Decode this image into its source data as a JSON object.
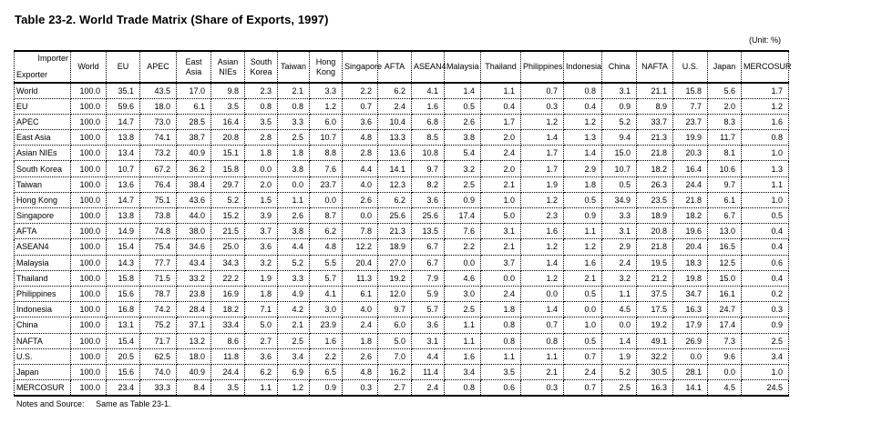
{
  "title": "Table 23-2.   World Trade Matrix (Share of Exports, 1997)",
  "unit": "(Unit: %)",
  "corner": {
    "importer": "Importer",
    "exporter": "Exporter"
  },
  "columns": [
    "World",
    "EU",
    "APEC",
    "East Asia",
    "Asian NIEs",
    "South Korea",
    "Taiwan",
    "Hong Kong",
    "Singapore",
    "AFTA",
    "ASEAN4",
    "Malaysia",
    "Thailand",
    "Philippines",
    "Indonesia",
    "China",
    "NAFTA",
    "U.S.",
    "Japan",
    "MERCOSUR"
  ],
  "rows": [
    {
      "exporter": "World",
      "values": [
        "100.0",
        "35.1",
        "43.5",
        "17.0",
        "9.8",
        "2.3",
        "2.1",
        "3.3",
        "2.2",
        "6.2",
        "4.1",
        "1.4",
        "1.1",
        "0.7",
        "0.8",
        "3.1",
        "21.1",
        "15.8",
        "5.6",
        "1.7"
      ]
    },
    {
      "exporter": "EU",
      "values": [
        "100.0",
        "59.6",
        "18.0",
        "6.1",
        "3.5",
        "0.8",
        "0.8",
        "1.2",
        "0.7",
        "2.4",
        "1.6",
        "0.5",
        "0.4",
        "0.3",
        "0.4",
        "0.9",
        "8.9",
        "7.7",
        "2.0",
        "1.2"
      ]
    },
    {
      "exporter": "APEC",
      "values": [
        "100.0",
        "14.7",
        "73.0",
        "28.5",
        "16.4",
        "3.5",
        "3.3",
        "6.0",
        "3.6",
        "10.4",
        "6.8",
        "2.6",
        "1.7",
        "1.2",
        "1.2",
        "5.2",
        "33.7",
        "23.7",
        "8.3",
        "1.6"
      ]
    },
    {
      "exporter": "East Asia",
      "values": [
        "100.0",
        "13.8",
        "74.1",
        "38.7",
        "20.8",
        "2.8",
        "2.5",
        "10.7",
        "4.8",
        "13.3",
        "8.5",
        "3.8",
        "2.0",
        "1.4",
        "1.3",
        "9.4",
        "21.3",
        "19.9",
        "11.7",
        "0.8"
      ]
    },
    {
      "exporter": "Asian NIEs",
      "values": [
        "100.0",
        "13.4",
        "73.2",
        "40.9",
        "15.1",
        "1.8",
        "1.8",
        "8.8",
        "2.8",
        "13.6",
        "10.8",
        "5.4",
        "2.4",
        "1.7",
        "1.4",
        "15.0",
        "21.8",
        "20.3",
        "8.1",
        "1.0"
      ]
    },
    {
      "exporter": "South Korea",
      "values": [
        "100.0",
        "10.7",
        "67.2",
        "36.2",
        "15.8",
        "0.0",
        "3.8",
        "7.6",
        "4.4",
        "14.1",
        "9.7",
        "3.2",
        "2.0",
        "1.7",
        "2.9",
        "10.7",
        "18.2",
        "16.4",
        "10.6",
        "1.3"
      ]
    },
    {
      "exporter": "Taiwan",
      "values": [
        "100.0",
        "13.6",
        "76.4",
        "38.4",
        "29.7",
        "2.0",
        "0.0",
        "23.7",
        "4.0",
        "12.3",
        "8.2",
        "2.5",
        "2.1",
        "1.9",
        "1.8",
        "0.5",
        "26.3",
        "24.4",
        "9.7",
        "1.1"
      ]
    },
    {
      "exporter": "Hong Kong",
      "values": [
        "100.0",
        "14.7",
        "75.1",
        "43.6",
        "5.2",
        "1.5",
        "1.1",
        "0.0",
        "2.6",
        "6.2",
        "3.6",
        "0.9",
        "1.0",
        "1.2",
        "0.5",
        "34.9",
        "23.5",
        "21.8",
        "6.1",
        "1.0"
      ]
    },
    {
      "exporter": "Singapore",
      "values": [
        "100.0",
        "13.8",
        "73.8",
        "44.0",
        "15.2",
        "3.9",
        "2.6",
        "8.7",
        "0.0",
        "25.6",
        "25.6",
        "17.4",
        "5.0",
        "2.3",
        "0.9",
        "3.3",
        "18.9",
        "18.2",
        "6.7",
        "0.5"
      ]
    },
    {
      "exporter": "AFTA",
      "values": [
        "100.0",
        "14.9",
        "74.8",
        "38.0",
        "21.5",
        "3.7",
        "3.8",
        "6.2",
        "7.8",
        "21.3",
        "13.5",
        "7.6",
        "3.1",
        "1.6",
        "1.1",
        "3.1",
        "20.8",
        "19.6",
        "13.0",
        "0.4"
      ]
    },
    {
      "exporter": "ASEAN4",
      "values": [
        "100.0",
        "15.4",
        "75.4",
        "34.6",
        "25.0",
        "3.6",
        "4.4",
        "4.8",
        "12.2",
        "18.9",
        "6.7",
        "2.2",
        "2.1",
        "1.2",
        "1.2",
        "2.9",
        "21.8",
        "20.4",
        "16.5",
        "0.4"
      ]
    },
    {
      "exporter": "Malaysia",
      "values": [
        "100.0",
        "14.3",
        "77.7",
        "43.4",
        "34.3",
        "3.2",
        "5.2",
        "5.5",
        "20.4",
        "27.0",
        "6.7",
        "0.0",
        "3.7",
        "1.4",
        "1.6",
        "2.4",
        "19.5",
        "18.3",
        "12.5",
        "0.6"
      ]
    },
    {
      "exporter": "Thailand",
      "values": [
        "100.0",
        "15.8",
        "71.5",
        "33.2",
        "22.2",
        "1.9",
        "3.3",
        "5.7",
        "11.3",
        "19.2",
        "7.9",
        "4.6",
        "0.0",
        "1.2",
        "2.1",
        "3.2",
        "21.2",
        "19.8",
        "15.0",
        "0.4"
      ]
    },
    {
      "exporter": "Philippines",
      "values": [
        "100.0",
        "15.6",
        "78.7",
        "23.8",
        "16.9",
        "1.8",
        "4.9",
        "4.1",
        "6.1",
        "12.0",
        "5.9",
        "3.0",
        "2.4",
        "0.0",
        "0.5",
        "1.1",
        "37.5",
        "34.7",
        "16.1",
        "0.2"
      ]
    },
    {
      "exporter": "Indonesia",
      "values": [
        "100.0",
        "16.8",
        "74.2",
        "28.4",
        "18.2",
        "7.1",
        "4.2",
        "3.0",
        "4.0",
        "9.7",
        "5.7",
        "2.5",
        "1.8",
        "1.4",
        "0.0",
        "4.5",
        "17.5",
        "16.3",
        "24.7",
        "0.3"
      ]
    },
    {
      "exporter": "China",
      "values": [
        "100.0",
        "13.1",
        "75.2",
        "37.1",
        "33.4",
        "5.0",
        "2.1",
        "23.9",
        "2.4",
        "6.0",
        "3.6",
        "1.1",
        "0.8",
        "0.7",
        "1.0",
        "0.0",
        "19.2",
        "17.9",
        "17.4",
        "0.9"
      ]
    },
    {
      "exporter": "NAFTA",
      "values": [
        "100.0",
        "15.4",
        "71.7",
        "13.2",
        "8.6",
        "2.7",
        "2.5",
        "1.6",
        "1.8",
        "5.0",
        "3.1",
        "1.1",
        "0.8",
        "0.8",
        "0.5",
        "1.4",
        "49.1",
        "26.9",
        "7.3",
        "2.5"
      ]
    },
    {
      "exporter": "U.S.",
      "values": [
        "100.0",
        "20.5",
        "62.5",
        "18.0",
        "11.8",
        "3.6",
        "3.4",
        "2.2",
        "2.6",
        "7.0",
        "4.4",
        "1.6",
        "1.1",
        "1.1",
        "0.7",
        "1.9",
        "32.2",
        "0.0",
        "9.6",
        "3.4"
      ]
    },
    {
      "exporter": "Japan",
      "values": [
        "100.0",
        "15.6",
        "74.0",
        "40.9",
        "24.4",
        "6.2",
        "6.9",
        "6.5",
        "4.8",
        "16.2",
        "11.4",
        "3.4",
        "3.5",
        "2.1",
        "2.4",
        "5.2",
        "30.5",
        "28.1",
        "0.0",
        "1.0"
      ]
    },
    {
      "exporter": "MERCOSUR",
      "values": [
        "100.0",
        "23.4",
        "33.3",
        "8.4",
        "3.5",
        "1.1",
        "1.2",
        "0.9",
        "0.3",
        "2.7",
        "2.4",
        "0.8",
        "0.6",
        "0.3",
        "0.7",
        "2.5",
        "16.3",
        "14.1",
        "4.5",
        "24.5"
      ]
    }
  ],
  "notes": {
    "label": "Notes and Source:",
    "text": "Same as Table 23-1."
  }
}
